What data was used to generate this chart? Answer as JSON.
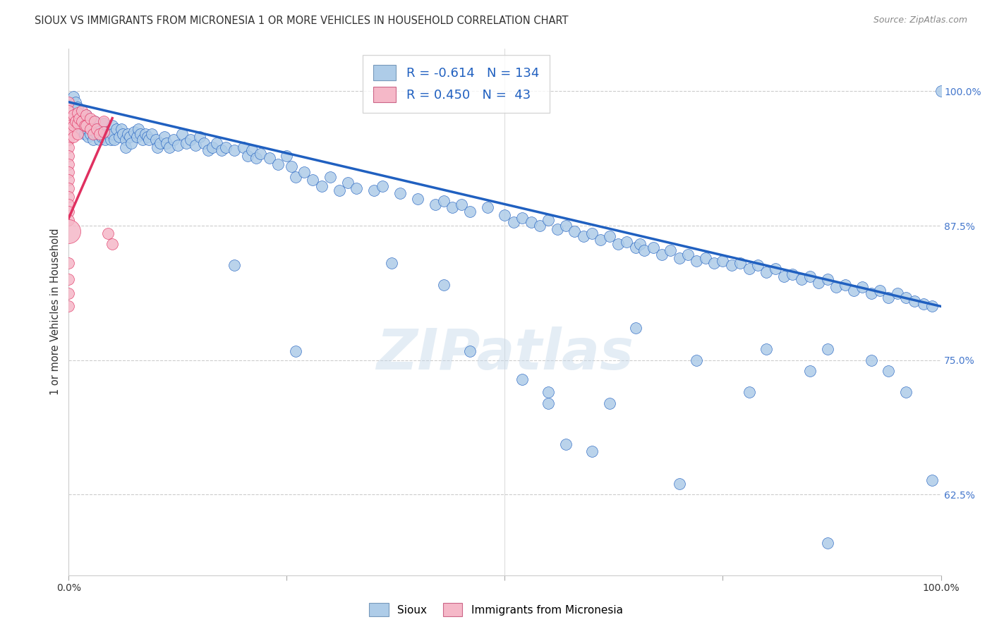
{
  "title": "SIOUX VS IMMIGRANTS FROM MICRONESIA 1 OR MORE VEHICLES IN HOUSEHOLD CORRELATION CHART",
  "source": "Source: ZipAtlas.com",
  "ylabel": "1 or more Vehicles in Household",
  "legend_blue": {
    "R": -0.614,
    "N": 134,
    "label": "Sioux"
  },
  "legend_pink": {
    "R": 0.45,
    "N": 43,
    "label": "Immigrants from Micronesia"
  },
  "blue_color": "#aecce8",
  "pink_color": "#f5b8c8",
  "trendline_blue": "#2060c0",
  "trendline_pink": "#e03060",
  "watermark": "ZIPatlas",
  "yticks": [
    0.625,
    0.75,
    0.875,
    1.0
  ],
  "xlim": [
    0.0,
    1.0
  ],
  "ylim": [
    0.55,
    1.04
  ],
  "blue_scatter": [
    [
      0.005,
      0.995
    ],
    [
      0.008,
      0.99
    ],
    [
      0.01,
      0.985
    ],
    [
      0.01,
      0.978
    ],
    [
      0.012,
      0.972
    ],
    [
      0.015,
      0.968
    ],
    [
      0.015,
      0.962
    ],
    [
      0.018,
      0.96
    ],
    [
      0.02,
      0.978
    ],
    [
      0.02,
      0.97
    ],
    [
      0.02,
      0.965
    ],
    [
      0.022,
      0.958
    ],
    [
      0.025,
      0.968
    ],
    [
      0.025,
      0.96
    ],
    [
      0.028,
      0.955
    ],
    [
      0.03,
      0.972
    ],
    [
      0.03,
      0.965
    ],
    [
      0.032,
      0.96
    ],
    [
      0.035,
      0.955
    ],
    [
      0.038,
      0.958
    ],
    [
      0.04,
      0.97
    ],
    [
      0.04,
      0.962
    ],
    [
      0.042,
      0.955
    ],
    [
      0.045,
      0.96
    ],
    [
      0.048,
      0.955
    ],
    [
      0.05,
      0.968
    ],
    [
      0.05,
      0.96
    ],
    [
      0.052,
      0.955
    ],
    [
      0.055,
      0.965
    ],
    [
      0.058,
      0.958
    ],
    [
      0.06,
      0.965
    ],
    [
      0.062,
      0.96
    ],
    [
      0.065,
      0.955
    ],
    [
      0.065,
      0.948
    ],
    [
      0.068,
      0.96
    ],
    [
      0.07,
      0.958
    ],
    [
      0.072,
      0.952
    ],
    [
      0.075,
      0.962
    ],
    [
      0.078,
      0.958
    ],
    [
      0.08,
      0.965
    ],
    [
      0.082,
      0.96
    ],
    [
      0.085,
      0.955
    ],
    [
      0.088,
      0.96
    ],
    [
      0.09,
      0.958
    ],
    [
      0.092,
      0.955
    ],
    [
      0.095,
      0.96
    ],
    [
      0.1,
      0.955
    ],
    [
      0.102,
      0.948
    ],
    [
      0.105,
      0.952
    ],
    [
      0.11,
      0.958
    ],
    [
      0.112,
      0.952
    ],
    [
      0.115,
      0.948
    ],
    [
      0.12,
      0.955
    ],
    [
      0.125,
      0.95
    ],
    [
      0.13,
      0.96
    ],
    [
      0.135,
      0.952
    ],
    [
      0.14,
      0.955
    ],
    [
      0.145,
      0.95
    ],
    [
      0.15,
      0.958
    ],
    [
      0.155,
      0.952
    ],
    [
      0.16,
      0.945
    ],
    [
      0.165,
      0.948
    ],
    [
      0.17,
      0.952
    ],
    [
      0.175,
      0.945
    ],
    [
      0.18,
      0.948
    ],
    [
      0.19,
      0.945
    ],
    [
      0.2,
      0.948
    ],
    [
      0.205,
      0.94
    ],
    [
      0.21,
      0.945
    ],
    [
      0.215,
      0.938
    ],
    [
      0.22,
      0.942
    ],
    [
      0.23,
      0.938
    ],
    [
      0.24,
      0.932
    ],
    [
      0.25,
      0.94
    ],
    [
      0.255,
      0.93
    ],
    [
      0.26,
      0.92
    ],
    [
      0.27,
      0.925
    ],
    [
      0.28,
      0.918
    ],
    [
      0.29,
      0.912
    ],
    [
      0.3,
      0.92
    ],
    [
      0.31,
      0.908
    ],
    [
      0.32,
      0.915
    ],
    [
      0.33,
      0.91
    ],
    [
      0.35,
      0.908
    ],
    [
      0.36,
      0.912
    ],
    [
      0.38,
      0.905
    ],
    [
      0.4,
      0.9
    ],
    [
      0.42,
      0.895
    ],
    [
      0.43,
      0.898
    ],
    [
      0.44,
      0.892
    ],
    [
      0.45,
      0.895
    ],
    [
      0.46,
      0.888
    ],
    [
      0.48,
      0.892
    ],
    [
      0.5,
      0.885
    ],
    [
      0.51,
      0.878
    ],
    [
      0.52,
      0.882
    ],
    [
      0.53,
      0.878
    ],
    [
      0.54,
      0.875
    ],
    [
      0.55,
      0.88
    ],
    [
      0.56,
      0.872
    ],
    [
      0.57,
      0.875
    ],
    [
      0.58,
      0.87
    ],
    [
      0.59,
      0.865
    ],
    [
      0.6,
      0.868
    ],
    [
      0.61,
      0.862
    ],
    [
      0.62,
      0.865
    ],
    [
      0.63,
      0.858
    ],
    [
      0.64,
      0.86
    ],
    [
      0.65,
      0.855
    ],
    [
      0.655,
      0.858
    ],
    [
      0.66,
      0.852
    ],
    [
      0.67,
      0.855
    ],
    [
      0.68,
      0.848
    ],
    [
      0.69,
      0.852
    ],
    [
      0.7,
      0.845
    ],
    [
      0.71,
      0.848
    ],
    [
      0.72,
      0.842
    ],
    [
      0.73,
      0.845
    ],
    [
      0.74,
      0.84
    ],
    [
      0.75,
      0.842
    ],
    [
      0.76,
      0.838
    ],
    [
      0.77,
      0.84
    ],
    [
      0.78,
      0.835
    ],
    [
      0.79,
      0.838
    ],
    [
      0.8,
      0.832
    ],
    [
      0.81,
      0.835
    ],
    [
      0.82,
      0.828
    ],
    [
      0.83,
      0.83
    ],
    [
      0.84,
      0.825
    ],
    [
      0.85,
      0.828
    ],
    [
      0.86,
      0.822
    ],
    [
      0.87,
      0.825
    ],
    [
      0.88,
      0.818
    ],
    [
      0.89,
      0.82
    ],
    [
      0.9,
      0.815
    ],
    [
      0.91,
      0.818
    ],
    [
      0.92,
      0.812
    ],
    [
      0.93,
      0.815
    ],
    [
      0.94,
      0.808
    ],
    [
      0.95,
      0.812
    ],
    [
      0.96,
      0.808
    ],
    [
      0.97,
      0.805
    ],
    [
      0.98,
      0.802
    ],
    [
      0.99,
      0.8
    ],
    [
      0.19,
      0.838
    ],
    [
      0.26,
      0.758
    ],
    [
      0.37,
      0.84
    ],
    [
      0.43,
      0.82
    ],
    [
      0.46,
      0.758
    ],
    [
      0.52,
      0.732
    ],
    [
      0.55,
      0.72
    ],
    [
      0.55,
      0.71
    ],
    [
      0.57,
      0.672
    ],
    [
      0.6,
      0.665
    ],
    [
      0.62,
      0.71
    ],
    [
      0.65,
      0.78
    ],
    [
      0.7,
      0.635
    ],
    [
      0.72,
      0.75
    ],
    [
      0.78,
      0.72
    ],
    [
      0.8,
      0.76
    ],
    [
      0.85,
      0.74
    ],
    [
      0.87,
      0.76
    ],
    [
      0.92,
      0.75
    ],
    [
      0.94,
      0.74
    ],
    [
      0.96,
      0.72
    ],
    [
      1.0,
      1.0
    ],
    [
      0.99,
      0.638
    ],
    [
      0.87,
      0.58
    ]
  ],
  "pink_scatter": [
    [
      0.0,
      0.99
    ],
    [
      0.0,
      0.982
    ],
    [
      0.0,
      0.975
    ],
    [
      0.0,
      0.968
    ],
    [
      0.0,
      0.962
    ],
    [
      0.0,
      0.955
    ],
    [
      0.0,
      0.948
    ],
    [
      0.0,
      0.94
    ],
    [
      0.0,
      0.932
    ],
    [
      0.0,
      0.925
    ],
    [
      0.0,
      0.918
    ],
    [
      0.0,
      0.91
    ],
    [
      0.0,
      0.902
    ],
    [
      0.0,
      0.895
    ],
    [
      0.0,
      0.888
    ],
    [
      0.0,
      0.88
    ],
    [
      0.005,
      0.978
    ],
    [
      0.005,
      0.968
    ],
    [
      0.005,
      0.958
    ],
    [
      0.008,
      0.972
    ],
    [
      0.01,
      0.98
    ],
    [
      0.01,
      0.97
    ],
    [
      0.01,
      0.96
    ],
    [
      0.012,
      0.975
    ],
    [
      0.015,
      0.982
    ],
    [
      0.015,
      0.972
    ],
    [
      0.018,
      0.968
    ],
    [
      0.02,
      0.978
    ],
    [
      0.02,
      0.968
    ],
    [
      0.025,
      0.975
    ],
    [
      0.025,
      0.965
    ],
    [
      0.028,
      0.96
    ],
    [
      0.03,
      0.972
    ],
    [
      0.032,
      0.965
    ],
    [
      0.035,
      0.96
    ],
    [
      0.04,
      0.972
    ],
    [
      0.04,
      0.962
    ],
    [
      0.045,
      0.868
    ],
    [
      0.05,
      0.858
    ],
    [
      0.0,
      0.84
    ],
    [
      0.0,
      0.825
    ],
    [
      0.0,
      0.812
    ],
    [
      0.0,
      0.8
    ]
  ],
  "pink_size_large": [
    [
      0.0,
      0.87
    ]
  ],
  "trendline_blue_pts": [
    [
      0.0,
      0.99
    ],
    [
      1.0,
      0.8
    ]
  ],
  "trendline_pink_pts": [
    [
      0.0,
      0.882
    ],
    [
      0.05,
      0.975
    ]
  ]
}
